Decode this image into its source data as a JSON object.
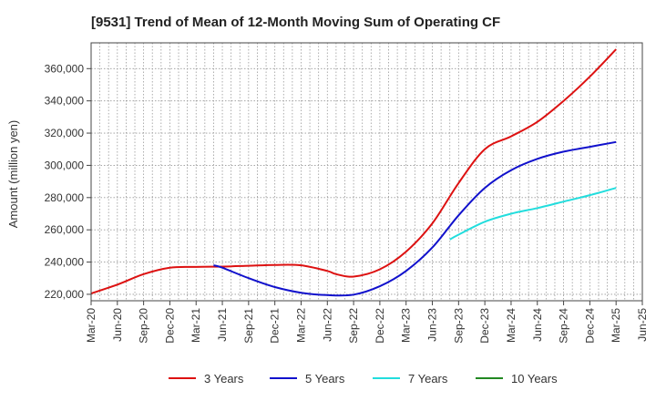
{
  "chart_data": {
    "type": "line",
    "title": "[9531]  Trend of Mean of 12-Month Moving Sum of Operating CF",
    "xlabel": "",
    "ylabel": "Amount (million yen)",
    "ylim": [
      216000,
      376000
    ],
    "yticks": [
      220000,
      240000,
      260000,
      280000,
      300000,
      320000,
      340000,
      360000
    ],
    "ytick_labels": [
      "220,000",
      "240,000",
      "260,000",
      "280,000",
      "300,000",
      "320,000",
      "340,000",
      "360,000"
    ],
    "xrange": [
      0,
      63
    ],
    "xtick_positions": [
      0,
      3,
      6,
      9,
      12,
      15,
      18,
      21,
      24,
      27,
      30,
      33,
      36,
      39,
      42,
      45,
      48,
      51,
      54,
      57,
      60,
      63
    ],
    "xtick_labels": [
      "Mar-20",
      "Jun-20",
      "Sep-20",
      "Dec-20",
      "Mar-21",
      "Jun-21",
      "Sep-21",
      "Dec-21",
      "Mar-22",
      "Jun-22",
      "Sep-22",
      "Dec-22",
      "Mar-23",
      "Jun-23",
      "Sep-23",
      "Dec-23",
      "Mar-24",
      "Jun-24",
      "Sep-24",
      "Dec-24",
      "Mar-25",
      "Jun-25"
    ],
    "grid": true,
    "legend_position": "bottom",
    "series": [
      {
        "name": "3 Years",
        "color": "#dd1111",
        "x": [
          0,
          3,
          6,
          9,
          12,
          15,
          18,
          21,
          24,
          27,
          28,
          30,
          33,
          36,
          39,
          42,
          45,
          48,
          51,
          54,
          57,
          60
        ],
        "values": [
          220500,
          226000,
          232500,
          236500,
          237000,
          237200,
          237700,
          238200,
          238000,
          234500,
          232500,
          231000,
          235500,
          246500,
          264000,
          289000,
          310000,
          318000,
          327000,
          340000,
          355000,
          372000
        ]
      },
      {
        "name": "5 Years",
        "color": "#1111cc",
        "x": [
          14,
          15,
          18,
          21,
          24,
          27,
          30,
          33,
          36,
          39,
          42,
          45,
          48,
          51,
          54,
          57,
          60
        ],
        "values": [
          238000,
          236500,
          230000,
          224500,
          221000,
          219500,
          219800,
          225000,
          234500,
          249000,
          269000,
          286000,
          297000,
          304000,
          308500,
          311500,
          314500
        ]
      },
      {
        "name": "7 Years",
        "color": "#22dddd",
        "x": [
          41,
          42,
          45,
          48,
          51,
          54,
          57,
          60
        ],
        "values": [
          254000,
          257000,
          265000,
          270000,
          273500,
          277500,
          281500,
          286000
        ]
      },
      {
        "name": "10 Years",
        "color": "#228822",
        "x": [],
        "values": []
      }
    ]
  }
}
